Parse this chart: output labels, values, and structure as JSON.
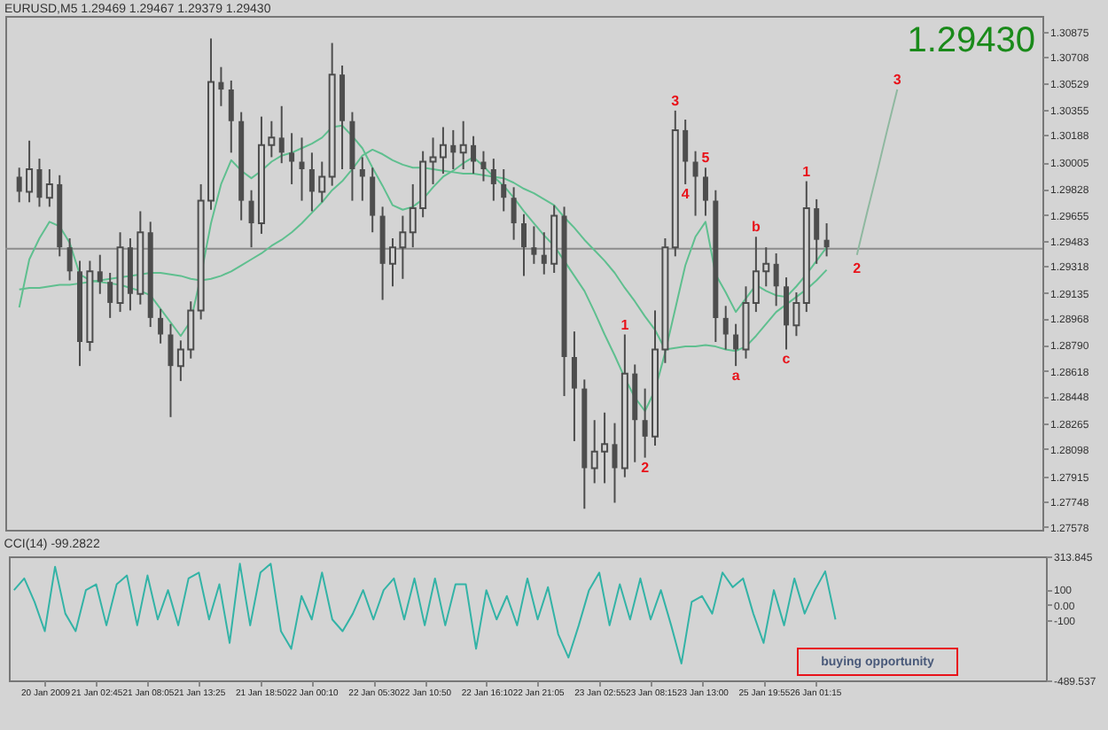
{
  "chart_data": [
    {
      "type": "candlestick",
      "title": "EURUSD,M5 1.29469 1.29467 1.29379 1.29430",
      "color": "#4d4d4d",
      "tick_labels": "y",
      "ylim": [
        1.2756,
        1.3098
      ],
      "yticks": [
        1.30875,
        1.30708,
        1.30529,
        1.30355,
        1.30188,
        1.30005,
        1.29828,
        1.29655,
        1.29483,
        1.29318,
        1.29135,
        1.28968,
        {
          "value": 1.2879,
          "label": "1.28790"
        },
        1.28618,
        1.28448,
        1.28265,
        1.28098,
        1.27915,
        1.27748,
        1.27578
      ],
      "categories": [
        null,
        null,
        null,
        null,
        null,
        null,
        null,
        null,
        null,
        null,
        null,
        null,
        null,
        null,
        null,
        null,
        null,
        null,
        null,
        null,
        null,
        null,
        null,
        null,
        null,
        null,
        null,
        null,
        null,
        null,
        null,
        null,
        null,
        null,
        null,
        null,
        null,
        null,
        null,
        null,
        null,
        null,
        null,
        null,
        null,
        null,
        null,
        null,
        null,
        null,
        null,
        null,
        null,
        null,
        null,
        null,
        null,
        null,
        null,
        null,
        null,
        null,
        null,
        null,
        null,
        null,
        null,
        null,
        null,
        null,
        null,
        null,
        null,
        null,
        null,
        null,
        null,
        null,
        null,
        null,
        null,
        null,
        null,
        null,
        null,
        null,
        null,
        null,
        null,
        null,
        null,
        null,
        null,
        null,
        null,
        null,
        null,
        null,
        null,
        null,
        null
      ],
      "ohlc": [
        [
          1.2991,
          1.2997,
          1.2974,
          1.2981
        ],
        [
          1.2981,
          1.3015,
          1.2974,
          1.2996
        ],
        [
          1.2996,
          1.3003,
          1.2971,
          1.2977
        ],
        [
          1.2977,
          1.2996,
          1.2971,
          1.2986
        ],
        [
          1.2986,
          1.2992,
          1.2938,
          1.2944
        ],
        [
          1.2944,
          1.295,
          1.2922,
          1.2928
        ],
        [
          1.2928,
          1.2935,
          1.2865,
          1.2881
        ],
        [
          1.2881,
          1.2935,
          1.2875,
          1.2928
        ],
        [
          1.2928,
          1.2939,
          1.2913,
          1.2921
        ],
        [
          1.2921,
          1.2927,
          1.2897,
          1.2907
        ],
        [
          1.2907,
          1.2954,
          1.2901,
          1.2944
        ],
        [
          1.2944,
          1.295,
          1.2902,
          1.2913
        ],
        [
          1.2913,
          1.2968,
          1.2906,
          1.2954
        ],
        [
          1.2954,
          1.2961,
          1.2891,
          1.2897
        ],
        [
          1.2897,
          1.2903,
          1.288,
          1.2886
        ],
        [
          1.2886,
          1.2893,
          1.2831,
          1.2865
        ],
        [
          1.2865,
          1.2882,
          1.2855,
          1.2876
        ],
        [
          1.2876,
          1.2908,
          1.287,
          1.2902
        ],
        [
          1.2902,
          1.2986,
          1.2896,
          1.2975
        ],
        [
          1.2975,
          1.3083,
          1.2969,
          1.3054
        ],
        [
          1.3054,
          1.3064,
          1.3038,
          1.3049
        ],
        [
          1.3049,
          1.3055,
          1.3007,
          1.3028
        ],
        [
          1.3028,
          1.3034,
          1.2962,
          1.2975
        ],
        [
          1.2975,
          1.2982,
          1.2944,
          1.296
        ],
        [
          1.296,
          1.3031,
          1.2953,
          1.3012
        ],
        [
          1.3012,
          1.3028,
          1.3004,
          1.3017
        ],
        [
          1.3017,
          1.3038,
          1.3,
          1.3007
        ],
        [
          1.3007,
          1.302,
          1.2986,
          1.3001
        ],
        [
          1.3001,
          1.3017,
          1.2975,
          1.2996
        ],
        [
          1.2996,
          1.3007,
          1.2968,
          1.2981
        ],
        [
          1.2981,
          1.3001,
          1.2974,
          1.2991
        ],
        [
          1.2991,
          1.308,
          1.2985,
          1.3059
        ],
        [
          1.3059,
          1.3065,
          1.2996,
          1.3028
        ],
        [
          1.3028,
          1.3034,
          1.2975,
          1.2996
        ],
        [
          1.2996,
          1.3004,
          1.2975,
          1.2991
        ],
        [
          1.2991,
          1.2997,
          1.2954,
          1.2965
        ],
        [
          1.2965,
          1.2971,
          1.2909,
          1.2933
        ],
        [
          1.2933,
          1.295,
          1.2918,
          1.2944
        ],
        [
          1.2944,
          1.2965,
          1.2923,
          1.2954
        ],
        [
          1.2954,
          1.2986,
          1.2944,
          1.297
        ],
        [
          1.297,
          1.3008,
          1.2964,
          1.3001
        ],
        [
          1.3001,
          1.3017,
          1.2986,
          1.3004
        ],
        [
          1.3004,
          1.3024,
          1.2993,
          1.3012
        ],
        [
          1.3012,
          1.3022,
          1.2996,
          1.3007
        ],
        [
          1.3007,
          1.3028,
          1.2996,
          1.3012
        ],
        [
          1.3012,
          1.3018,
          1.2993,
          1.3001
        ],
        [
          1.3001,
          1.3008,
          1.2988,
          1.2996
        ],
        [
          1.2996,
          1.3003,
          1.2975,
          1.2986
        ],
        [
          1.2986,
          1.2996,
          1.2968,
          1.2977
        ],
        [
          1.2977,
          1.2984,
          1.2949,
          1.296
        ],
        [
          1.296,
          1.2966,
          1.2925,
          1.2944
        ],
        [
          1.2944,
          1.2958,
          1.2933,
          1.2939
        ],
        [
          1.2939,
          1.2954,
          1.2926,
          1.2933
        ],
        [
          1.2933,
          1.2972,
          1.2927,
          1.2965
        ],
        [
          1.2965,
          1.2971,
          1.2845,
          1.2871
        ],
        [
          1.2871,
          1.2888,
          1.2815,
          1.285
        ],
        [
          1.285,
          1.2856,
          1.277,
          1.2797
        ],
        [
          1.2797,
          1.2829,
          1.2787,
          1.2808
        ],
        [
          1.2808,
          1.2834,
          1.2787,
          1.2813
        ],
        [
          1.2813,
          1.2827,
          1.2774,
          1.2797
        ],
        [
          1.2797,
          1.2886,
          1.2791,
          1.286
        ],
        [
          1.286,
          1.2866,
          1.2801,
          1.2829
        ],
        [
          1.2829,
          1.285,
          1.2804,
          1.2818
        ],
        [
          1.2818,
          1.2902,
          1.2812,
          1.2876
        ],
        [
          1.2876,
          1.295,
          1.2867,
          1.2944
        ],
        [
          1.2944,
          1.3035,
          1.2938,
          1.3022
        ],
        [
          1.3022,
          1.3029,
          1.2986,
          1.3001
        ],
        [
          1.3001,
          1.3008,
          1.2965,
          1.2991
        ],
        [
          1.2991,
          1.2997,
          1.2965,
          1.2975
        ],
        [
          1.2975,
          1.2982,
          1.2881,
          1.2897
        ],
        [
          1.2897,
          1.2905,
          1.2876,
          1.2886
        ],
        [
          1.2886,
          1.2893,
          1.2865,
          1.2876
        ],
        [
          1.2876,
          1.2918,
          1.287,
          1.2907
        ],
        [
          1.2907,
          1.2951,
          1.2901,
          1.2928
        ],
        [
          1.2928,
          1.2944,
          1.2918,
          1.2933
        ],
        [
          1.2933,
          1.294,
          1.2905,
          1.2918
        ],
        [
          1.2918,
          1.2924,
          1.2876,
          1.2892
        ],
        [
          1.2892,
          1.2914,
          1.2885,
          1.2907
        ],
        [
          1.2907,
          1.2988,
          1.2901,
          1.297
        ],
        [
          1.297,
          1.2976,
          1.2933,
          1.2949
        ],
        [
          1.2949,
          1.296,
          1.2938,
          1.2944
        ],
        null,
        null,
        null,
        null,
        null,
        null,
        null,
        null,
        null,
        null,
        null,
        null,
        null,
        null,
        null,
        null,
        null,
        null,
        null,
        null
      ],
      "series": [
        {
          "type": "line",
          "color": "#5fbf8f",
          "values": [
            1.2904,
            1.2936,
            1.295,
            1.2961,
            1.2958,
            1.2947,
            1.2926,
            1.2922,
            1.2921,
            1.292,
            1.2919,
            1.2917,
            1.2915,
            1.2912,
            1.2903,
            1.2894,
            1.2885,
            1.2895,
            1.2925,
            1.296,
            1.2986,
            1.3002,
            1.2995,
            1.299,
            1.2995,
            1.3001,
            1.3005,
            1.3007,
            1.301,
            1.3013,
            1.3017,
            1.3024,
            1.3025,
            1.3018,
            1.301,
            1.2997,
            1.2985,
            1.2972,
            1.2969,
            1.2971,
            1.2976,
            1.2984,
            1.2991,
            1.2995,
            1.3,
            1.3004,
            1.2998,
            1.2991,
            1.2985,
            1.2977,
            1.2968,
            1.296,
            1.2952,
            1.2945,
            1.2935,
            1.2925,
            1.2915,
            1.2901,
            1.2886,
            1.2872,
            1.2857,
            1.2844,
            1.2835,
            1.2849,
            1.2874,
            1.2903,
            1.2932,
            1.2951,
            1.2961,
            1.2926,
            1.2914,
            1.2901,
            1.291,
            1.2919,
            1.2915,
            1.2912,
            1.2911,
            1.2918,
            1.2926,
            1.2935,
            1.2944,
            null,
            null,
            null,
            null,
            null,
            null,
            null,
            null,
            null,
            null,
            null,
            null,
            null,
            null,
            null,
            null,
            null,
            null,
            null,
            null
          ]
        },
        {
          "type": "line",
          "color": "#5fbf8f",
          "values": [
            1.2916,
            1.2917,
            1.2917,
            1.2918,
            1.2919,
            1.2919,
            1.292,
            1.2921,
            1.2922,
            1.2923,
            1.2924,
            1.2925,
            1.2926,
            1.2927,
            1.2927,
            1.2926,
            1.2925,
            1.2923,
            1.2922,
            1.2923,
            1.2925,
            1.2928,
            1.2932,
            1.2936,
            1.294,
            1.2945,
            1.2949,
            1.2954,
            1.296,
            1.2967,
            1.2974,
            1.2982,
            1.2988,
            1.2996,
            1.3005,
            1.3009,
            1.3006,
            1.3002,
            1.2999,
            1.2997,
            1.2997,
            1.2996,
            1.2995,
            1.2994,
            1.2993,
            1.2993,
            1.2992,
            1.2991,
            1.299,
            1.2987,
            1.2983,
            1.298,
            1.2976,
            1.2972,
            1.2964,
            1.2957,
            1.2949,
            1.2942,
            1.2935,
            1.2927,
            1.2917,
            1.2908,
            1.2898,
            1.2889,
            1.2876,
            1.2877,
            1.2878,
            1.2878,
            1.2879,
            1.2878,
            1.2876,
            1.2875,
            1.2878,
            1.2885,
            1.2893,
            1.2901,
            1.2906,
            1.2911,
            1.2916,
            1.2922,
            1.2929,
            null,
            null,
            null,
            null,
            null,
            null,
            null,
            null,
            null,
            null,
            null,
            null,
            null,
            null,
            null,
            null,
            null,
            null,
            null,
            null
          ]
        },
        {
          "type": "line",
          "color": "#8fb8a0",
          "values": [
            null,
            null,
            null,
            null,
            null,
            null,
            null,
            null,
            null,
            null,
            null,
            null,
            null,
            null,
            null,
            null,
            null,
            null,
            null,
            null,
            null,
            null,
            null,
            null,
            null,
            null,
            null,
            null,
            null,
            null,
            null,
            null,
            null,
            null,
            null,
            null,
            null,
            null,
            null,
            null,
            null,
            null,
            null,
            null,
            null,
            null,
            null,
            null,
            null,
            null,
            null,
            null,
            null,
            null,
            null,
            null,
            null,
            null,
            null,
            null,
            null,
            null,
            null,
            null,
            null,
            null,
            null,
            null,
            null,
            null,
            null,
            null,
            null,
            null,
            null,
            null,
            null,
            null,
            null,
            null,
            null,
            null,
            null,
            1.2939,
            1.2967,
            1.2994,
            1.3022,
            1.3049,
            null,
            null,
            null,
            null,
            null,
            null,
            null,
            null,
            null,
            null,
            null,
            null,
            null
          ]
        }
      ],
      "ref_lines": [
        {
          "axis": "y",
          "value": 1.2943,
          "color": "#8c8c8c",
          "line_style": "solid"
        }
      ],
      "annotations": [
        "1.29430",
        "3",
        "5",
        "4",
        "1",
        "2",
        "a",
        "b",
        "c",
        "1",
        "2",
        "3"
      ]
    },
    {
      "type": "line",
      "title": "CCI(14) -99.2822",
      "color": "#33b3a6",
      "ylim": [
        -489.537,
        313.845
      ],
      "yticks": [
        313.845,
        100,
        {
          "value": 0,
          "label": "0.00"
        },
        -100,
        -489.537
      ],
      "categories": [
        null,
        null,
        null,
        "20 Jan 2009",
        null,
        null,
        null,
        null,
        "21 Jan 02:45",
        null,
        null,
        null,
        null,
        "21 Jan 08:05",
        null,
        null,
        null,
        null,
        "21 Jan 13:25",
        null,
        null,
        null,
        null,
        null,
        "21 Jan 18:50",
        null,
        null,
        null,
        null,
        "22 Jan 00:10",
        null,
        null,
        null,
        null,
        null,
        "22 Jan 05:30",
        null,
        null,
        null,
        null,
        "22 Jan 10:50",
        null,
        null,
        null,
        null,
        null,
        "22 Jan 16:10",
        null,
        null,
        null,
        null,
        "22 Jan 21:05",
        null,
        null,
        null,
        null,
        null,
        "23 Jan 02:55",
        null,
        null,
        null,
        null,
        "23 Jan 08:15",
        null,
        null,
        null,
        null,
        "23 Jan 13:00",
        null,
        null,
        null,
        null,
        null,
        "25 Jan 19:55",
        null,
        null,
        null,
        null,
        "26 Jan 01:15",
        null,
        null,
        null,
        null,
        null,
        null,
        null,
        null,
        null,
        null,
        null,
        null,
        null,
        null,
        null,
        null,
        null,
        null,
        null,
        null,
        null,
        null
      ],
      "values": [
        95,
        171,
        19,
        -171,
        247,
        -57,
        -171,
        95,
        133,
        -133,
        133,
        190,
        -133,
        190,
        -95,
        95,
        -133,
        171,
        209,
        -95,
        133,
        -247,
        266,
        -133,
        209,
        266,
        -171,
        -285,
        57,
        -95,
        209,
        -95,
        -171,
        -57,
        95,
        -95,
        95,
        171,
        -95,
        171,
        -133,
        171,
        -133,
        133,
        133,
        -285,
        95,
        -95,
        57,
        -133,
        171,
        -95,
        114,
        -190,
        -342,
        -133,
        95,
        209,
        -133,
        133,
        -95,
        171,
        -95,
        95,
        -133,
        -380,
        19,
        57,
        -57,
        209,
        114,
        171,
        -57,
        -247,
        95,
        -133,
        171,
        -57,
        95,
        217,
        -95,
        null,
        null,
        null,
        null,
        null,
        null,
        null,
        null,
        null,
        null,
        null,
        null,
        null,
        null,
        null,
        null,
        null,
        null,
        null,
        null
      ],
      "annotations": [
        "buying opportunity"
      ]
    }
  ]
}
